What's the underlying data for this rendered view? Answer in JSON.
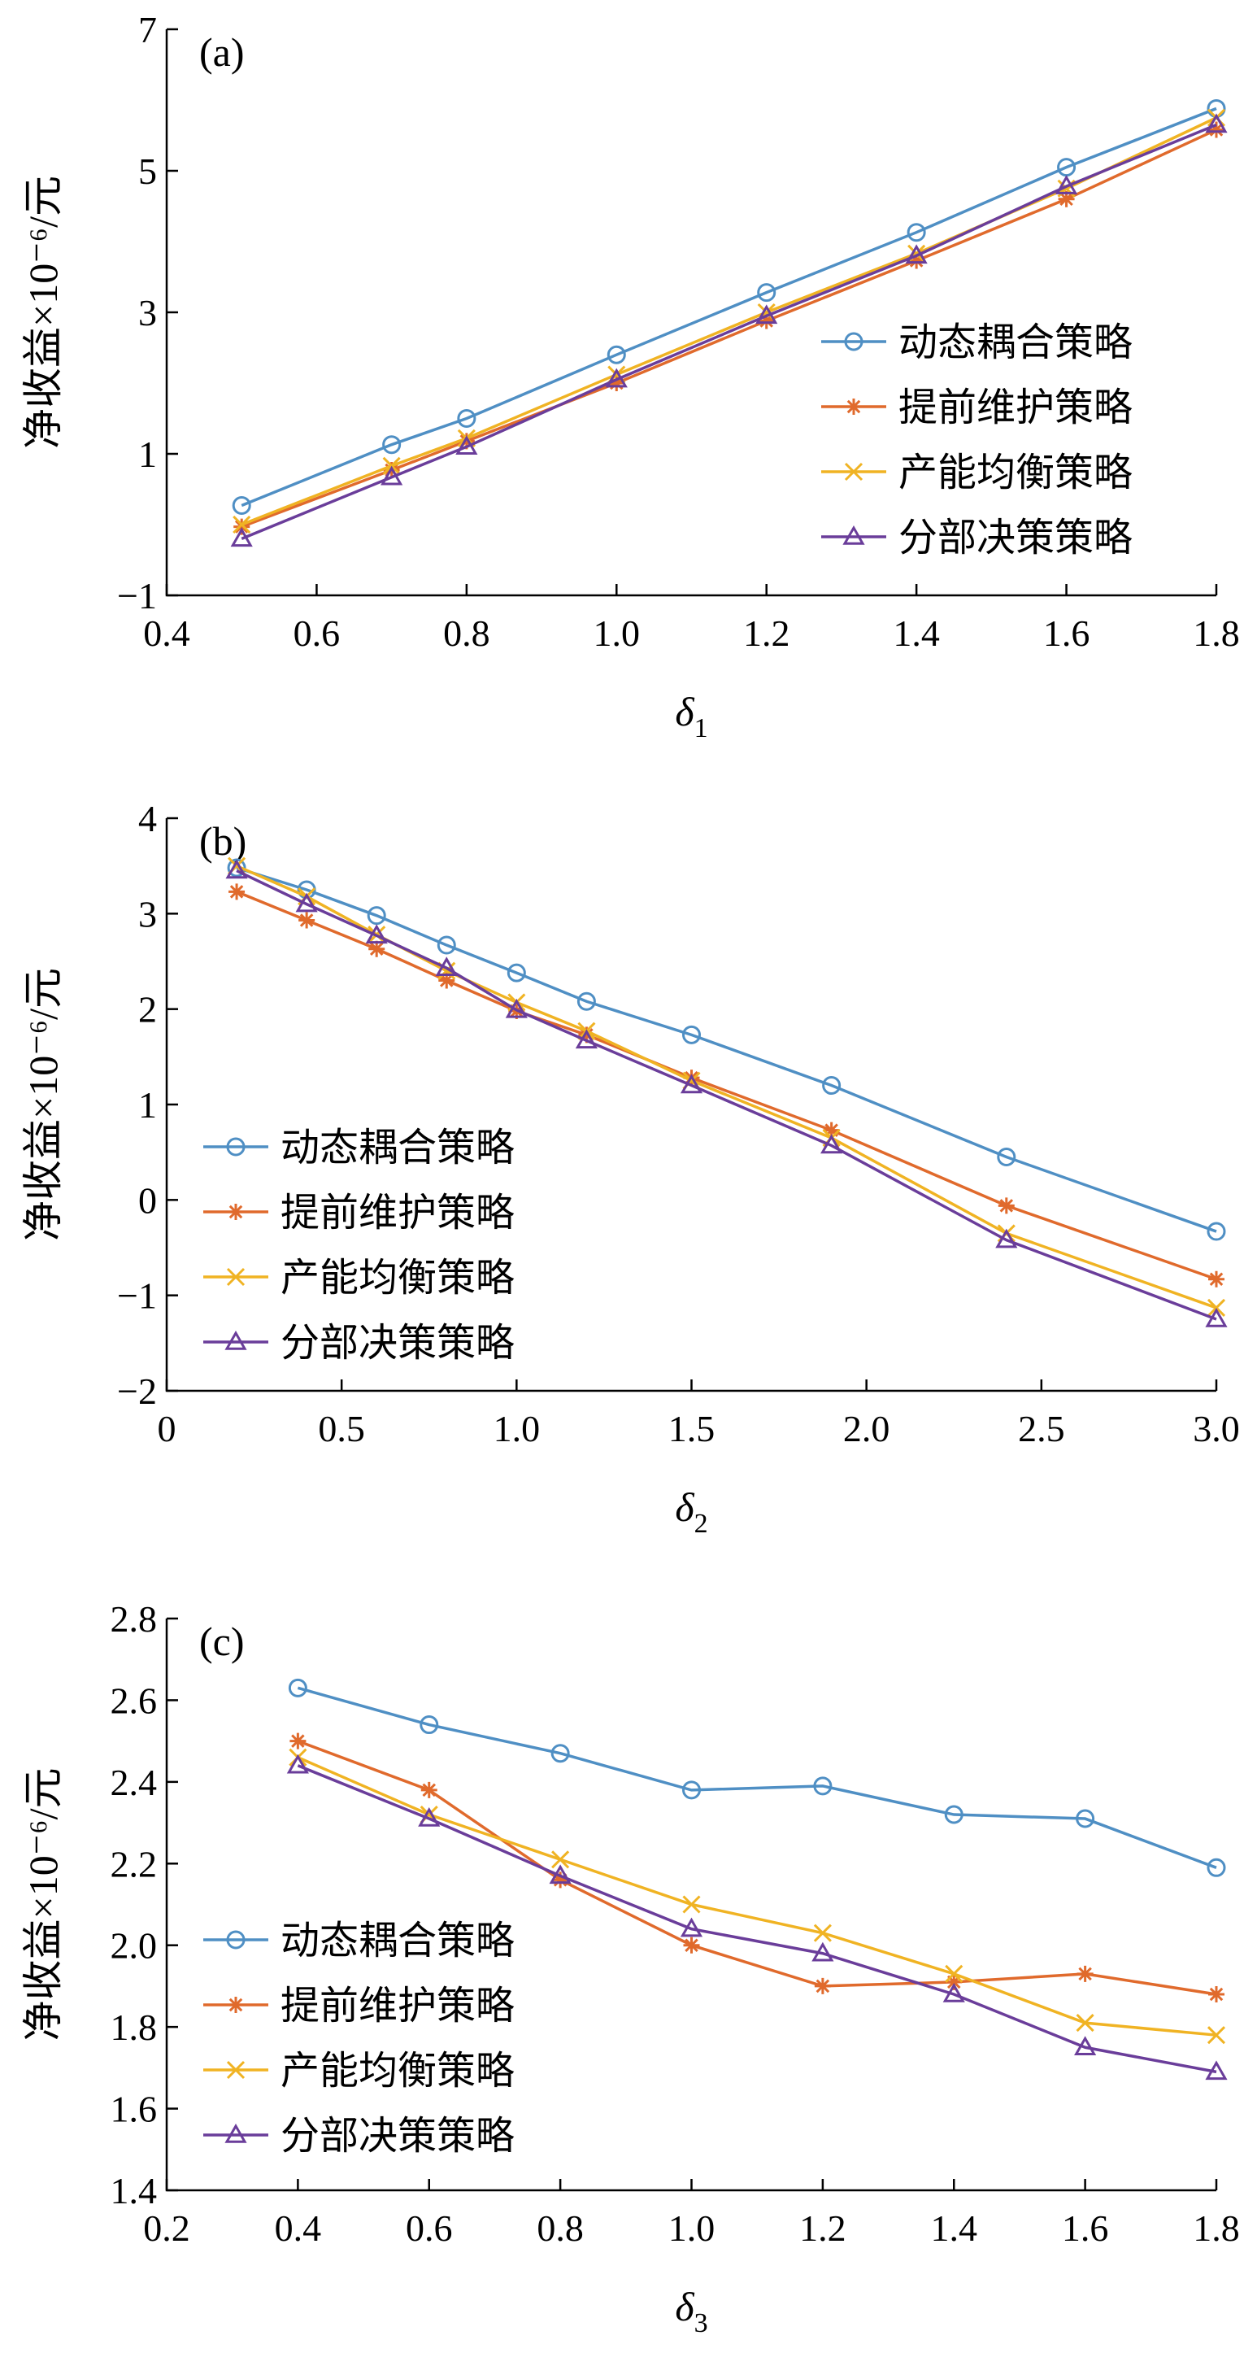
{
  "chart_data": [
    {
      "panel_label": "(a)",
      "type": "line",
      "xlabel": "δ",
      "xlabel_sub": "1",
      "ylabel": "净收益×10⁻⁶/元",
      "xlim": [
        0.4,
        1.8
      ],
      "ylim": [
        -1,
        7
      ],
      "xticks": [
        0.4,
        0.6,
        0.8,
        1.0,
        1.2,
        1.4,
        1.6,
        1.8
      ],
      "xtick_labels": [
        "0.4",
        "0.6",
        "0.8",
        "1.0",
        "1.2",
        "1.4",
        "1.6",
        "1.8"
      ],
      "yticks": [
        -1,
        1,
        3,
        5,
        7
      ],
      "ytick_labels": [
        "−1",
        "1",
        "3",
        "5",
        "7"
      ],
      "legend_position": "lower-right",
      "x": [
        0.5,
        0.7,
        0.8,
        1.0,
        1.2,
        1.4,
        1.6,
        1.8
      ],
      "series": [
        {
          "name": "动态耦合策略",
          "marker": "circle",
          "color": "#4f8fc4",
          "values": [
            0.27,
            1.13,
            1.5,
            2.4,
            3.28,
            4.13,
            5.05,
            5.88
          ]
        },
        {
          "name": "提前维护策略",
          "marker": "asterisk",
          "color": "#e06a2c",
          "values": [
            -0.03,
            0.77,
            1.18,
            2.0,
            2.88,
            3.73,
            4.6,
            5.58
          ]
        },
        {
          "name": "产能均衡策略",
          "marker": "x",
          "color": "#f0b323",
          "values": [
            0.0,
            0.83,
            1.22,
            2.12,
            3.0,
            3.83,
            4.75,
            5.75
          ]
        },
        {
          "name": "分部决策策略",
          "marker": "triangle",
          "color": "#6a3d9a",
          "values": [
            -0.2,
            0.67,
            1.1,
            2.05,
            2.95,
            3.8,
            4.78,
            5.65
          ]
        }
      ]
    },
    {
      "panel_label": "(b)",
      "type": "line",
      "xlabel": "δ",
      "xlabel_sub": "2",
      "ylabel": "净收益×10⁻⁶/元",
      "xlim": [
        0,
        3.0
      ],
      "ylim": [
        -2,
        4
      ],
      "xticks": [
        0,
        0.5,
        1.0,
        1.5,
        2.0,
        2.5,
        3.0
      ],
      "xtick_labels": [
        "0",
        "0.5",
        "1.0",
        "1.5",
        "2.0",
        "2.5",
        "3.0"
      ],
      "yticks": [
        -2,
        -1,
        0,
        1,
        2,
        3,
        4
      ],
      "ytick_labels": [
        "−2",
        "−1",
        "0",
        "1",
        "2",
        "3",
        "4"
      ],
      "legend_position": "lower-left",
      "x": [
        0.2,
        0.4,
        0.6,
        0.8,
        1.0,
        1.2,
        1.5,
        1.9,
        2.4,
        3.0
      ],
      "series": [
        {
          "name": "动态耦合策略",
          "marker": "circle",
          "color": "#4f8fc4",
          "values": [
            3.48,
            3.25,
            2.98,
            2.67,
            2.38,
            2.08,
            1.73,
            1.2,
            0.45,
            -0.33
          ]
        },
        {
          "name": "提前维护策略",
          "marker": "asterisk",
          "color": "#e06a2c",
          "values": [
            3.23,
            2.93,
            2.63,
            2.3,
            1.98,
            1.73,
            1.28,
            0.73,
            -0.06,
            -0.83
          ]
        },
        {
          "name": "产能均衡策略",
          "marker": "x",
          "color": "#f0b323",
          "values": [
            3.5,
            3.18,
            2.78,
            2.4,
            2.07,
            1.77,
            1.25,
            0.65,
            -0.35,
            -1.13
          ]
        },
        {
          "name": "分部决策策略",
          "marker": "triangle",
          "color": "#6a3d9a",
          "values": [
            3.45,
            3.1,
            2.77,
            2.43,
            1.99,
            1.67,
            1.2,
            0.57,
            -0.42,
            -1.25
          ]
        }
      ]
    },
    {
      "panel_label": "(c)",
      "type": "line",
      "xlabel": "δ",
      "xlabel_sub": "3",
      "ylabel": "净收益×10⁻⁶/元",
      "xlim": [
        0.2,
        1.8
      ],
      "ylim": [
        1.4,
        2.8
      ],
      "xticks": [
        0.2,
        0.4,
        0.6,
        0.8,
        1.0,
        1.2,
        1.4,
        1.6,
        1.8
      ],
      "xtick_labels": [
        "0.2",
        "0.4",
        "0.6",
        "0.8",
        "1.0",
        "1.2",
        "1.4",
        "1.6",
        "1.8"
      ],
      "yticks": [
        1.4,
        1.6,
        1.8,
        2.0,
        2.2,
        2.4,
        2.6,
        2.8
      ],
      "ytick_labels": [
        "1.4",
        "1.6",
        "1.8",
        "2.0",
        "2.2",
        "2.4",
        "2.6",
        "2.8"
      ],
      "legend_position": "lower-left",
      "x": [
        0.4,
        0.6,
        0.8,
        1.0,
        1.2,
        1.4,
        1.6,
        1.8
      ],
      "series": [
        {
          "name": "动态耦合策略",
          "marker": "circle",
          "color": "#4f8fc4",
          "values": [
            2.63,
            2.54,
            2.47,
            2.38,
            2.39,
            2.32,
            2.31,
            2.19
          ]
        },
        {
          "name": "提前维护策略",
          "marker": "asterisk",
          "color": "#e06a2c",
          "values": [
            2.5,
            2.38,
            2.16,
            2.0,
            1.9,
            1.91,
            1.93,
            1.88
          ]
        },
        {
          "name": "产能均衡策略",
          "marker": "x",
          "color": "#f0b323",
          "values": [
            2.46,
            2.32,
            2.21,
            2.1,
            2.03,
            1.93,
            1.81,
            1.78
          ]
        },
        {
          "name": "分部决策策略",
          "marker": "triangle",
          "color": "#6a3d9a",
          "values": [
            2.44,
            2.31,
            2.17,
            2.04,
            1.98,
            1.88,
            1.75,
            1.69
          ]
        }
      ]
    }
  ]
}
